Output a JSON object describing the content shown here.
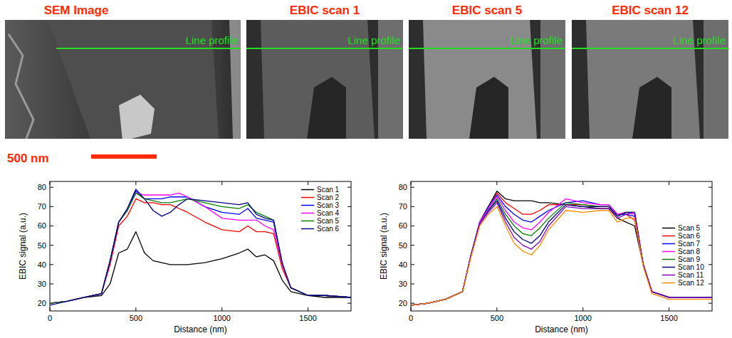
{
  "panels": [
    {
      "title": "SEM Image",
      "label": "Line profile"
    },
    {
      "title": "EBIC scan 1",
      "label": "Line profile"
    },
    {
      "title": "EBIC scan 5",
      "label": "Line profile"
    },
    {
      "title": "EBIC scan 12",
      "label": "Line profile"
    }
  ],
  "scale_bar": "500 nm",
  "chart_data": [
    {
      "type": "line",
      "xlabel": "Distance (nm)",
      "ylabel": "EBIC signal (a.u.)",
      "xlim": [
        0,
        1750
      ],
      "ylim": [
        16,
        83
      ],
      "xticks": [
        0,
        500,
        1000,
        1500
      ],
      "yticks": [
        20,
        30,
        40,
        50,
        60,
        70,
        80
      ],
      "legend": "upper right",
      "x": [
        0,
        100,
        200,
        300,
        350,
        400,
        450,
        500,
        550,
        600,
        650,
        700,
        750,
        800,
        900,
        1000,
        1100,
        1150,
        1200,
        1250,
        1300,
        1350,
        1400,
        1500,
        1600,
        1750
      ],
      "series": [
        {
          "name": "Scan 1",
          "color": "#000000",
          "values": [
            20,
            21,
            23,
            24,
            30,
            46,
            48,
            57,
            46,
            42,
            41,
            40,
            40,
            40,
            41,
            43,
            46,
            48,
            44,
            45,
            42,
            32,
            26,
            24,
            23,
            23
          ]
        },
        {
          "name": "Scan 2",
          "color": "#ff0000",
          "values": [
            20,
            21,
            23,
            25,
            40,
            60,
            65,
            74,
            72,
            72,
            71,
            71,
            69,
            67,
            62,
            58,
            57,
            60,
            57,
            57,
            56,
            38,
            28,
            24,
            24,
            23
          ]
        },
        {
          "name": "Scan 3",
          "color": "#0000ff",
          "values": [
            20,
            21,
            23,
            25,
            42,
            62,
            68,
            78,
            74,
            74,
            74,
            75,
            75,
            75,
            70,
            67,
            66,
            69,
            64,
            63,
            62,
            40,
            28,
            24,
            24,
            23
          ]
        },
        {
          "name": "Scan 4",
          "color": "#ff00ff",
          "values": [
            20,
            21,
            23,
            25,
            42,
            62,
            68,
            77,
            76,
            76,
            76,
            76,
            77,
            75,
            70,
            64,
            63,
            63,
            63,
            60,
            58,
            40,
            28,
            24,
            24,
            23
          ]
        },
        {
          "name": "Scan 5",
          "color": "#008000",
          "values": [
            20,
            21,
            23,
            25,
            42,
            62,
            68,
            77,
            74,
            73,
            72,
            72,
            73,
            74,
            72,
            70,
            69,
            71,
            67,
            65,
            63,
            41,
            28,
            24,
            24,
            23
          ]
        },
        {
          "name": "Scan 6",
          "color": "#000080",
          "values": [
            19,
            21,
            23,
            25,
            42,
            62,
            69,
            79,
            74,
            68,
            65,
            67,
            71,
            74,
            73,
            72,
            71,
            72,
            66,
            64,
            63,
            41,
            28,
            24,
            24,
            23
          ]
        }
      ]
    },
    {
      "type": "line",
      "xlabel": "Distance (nm)",
      "ylabel": "EBIC signal (a.u.)",
      "xlim": [
        0,
        1750
      ],
      "ylim": [
        16,
        83
      ],
      "xticks": [
        0,
        500,
        1000,
        1500
      ],
      "yticks": [
        20,
        30,
        40,
        50,
        60,
        70,
        80
      ],
      "legend": "lower right",
      "x": [
        0,
        100,
        200,
        300,
        350,
        400,
        450,
        500,
        550,
        600,
        650,
        700,
        750,
        800,
        900,
        1000,
        1100,
        1150,
        1200,
        1250,
        1300,
        1350,
        1400,
        1500,
        1600,
        1750
      ],
      "series": [
        {
          "name": "Scan 5",
          "color": "#000000",
          "values": [
            19,
            20,
            22,
            26,
            45,
            62,
            70,
            78,
            74,
            73,
            73,
            73,
            72,
            72,
            71,
            70,
            69,
            69,
            64,
            62,
            60,
            40,
            26,
            23,
            23,
            23
          ]
        },
        {
          "name": "Scan 6",
          "color": "#ff0000",
          "values": [
            19,
            20,
            22,
            26,
            45,
            62,
            70,
            77,
            72,
            69,
            66,
            66,
            68,
            71,
            71,
            71,
            70,
            70,
            66,
            66,
            63,
            40,
            26,
            23,
            23,
            23
          ]
        },
        {
          "name": "Scan 7",
          "color": "#0000ff",
          "values": [
            19,
            20,
            22,
            26,
            45,
            62,
            70,
            76,
            70,
            66,
            63,
            62,
            65,
            68,
            72,
            73,
            71,
            71,
            66,
            66,
            65,
            40,
            26,
            23,
            23,
            23
          ]
        },
        {
          "name": "Scan 8",
          "color": "#ff00ff",
          "values": [
            19,
            20,
            22,
            26,
            45,
            62,
            69,
            75,
            68,
            62,
            59,
            58,
            62,
            67,
            74,
            72,
            71,
            71,
            66,
            67,
            66,
            40,
            26,
            23,
            23,
            23
          ]
        },
        {
          "name": "Scan 9",
          "color": "#008000",
          "values": [
            19,
            20,
            22,
            26,
            45,
            61,
            68,
            74,
            66,
            60,
            56,
            55,
            59,
            64,
            72,
            71,
            70,
            70,
            65,
            67,
            67,
            40,
            26,
            23,
            23,
            23
          ]
        },
        {
          "name": "Scan 10",
          "color": "#000080",
          "values": [
            19,
            20,
            22,
            26,
            45,
            61,
            68,
            73,
            64,
            57,
            53,
            51,
            55,
            62,
            71,
            70,
            70,
            70,
            65,
            67,
            67,
            40,
            26,
            23,
            23,
            23
          ]
        },
        {
          "name": "Scan 11",
          "color": "#8000c0",
          "values": [
            19,
            20,
            22,
            26,
            45,
            61,
            67,
            72,
            62,
            54,
            50,
            48,
            52,
            60,
            70,
            69,
            69,
            69,
            64,
            66,
            67,
            40,
            26,
            23,
            23,
            23
          ]
        },
        {
          "name": "Scan 12",
          "color": "#ff8c00",
          "values": [
            19,
            20,
            22,
            26,
            44,
            60,
            66,
            70,
            60,
            51,
            47,
            45,
            50,
            58,
            68,
            67,
            68,
            68,
            62,
            64,
            64,
            39,
            25,
            22,
            22,
            22
          ]
        }
      ]
    }
  ]
}
